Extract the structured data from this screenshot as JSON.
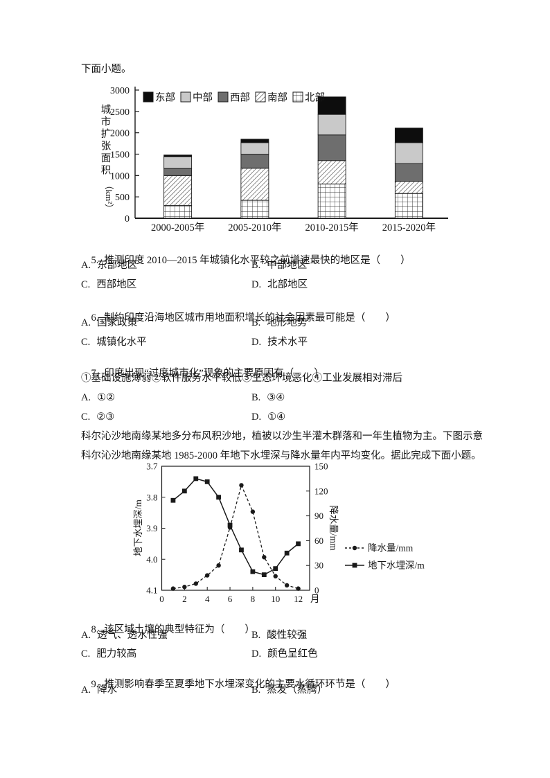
{
  "intro_tail": "下面小题。",
  "passage": {
    "lines": [
      "科尔沁沙地南缘某地多分布风积沙地，植被以沙生半灌木群落和一年生植物为主。下图示意",
      "科尔沁沙地南缘某地 1985-2000 年地下水埋深与降水量年内平均变化。据此完成下面小题。"
    ]
  },
  "chart_data": [
    {
      "type": "bar",
      "stacked": true,
      "ylabel_main": "城市扩张面积",
      "ylabel_unit": "（km²）",
      "categories": [
        "2000-2005年",
        "2005-2010年",
        "2010-2015年",
        "2015-2020年"
      ],
      "series": [
        {
          "name": "北部",
          "pattern": "grid",
          "values": [
            300,
            420,
            800,
            580
          ]
        },
        {
          "name": "南部",
          "pattern": "diagonal",
          "values": [
            700,
            750,
            550,
            280
          ]
        },
        {
          "name": "西部",
          "color": "#6e6e6e",
          "values": [
            165,
            330,
            600,
            420
          ]
        },
        {
          "name": "中部",
          "color": "#c9c9c9",
          "values": [
            275,
            270,
            480,
            490
          ]
        },
        {
          "name": "东部",
          "color": "#0d0d0d",
          "values": [
            40,
            80,
            410,
            340
          ]
        }
      ],
      "legend_order": [
        "东部",
        "中部",
        "西部",
        "南部",
        "北部"
      ],
      "ylim": [
        0,
        3000
      ],
      "yticks": [
        0,
        500,
        1000,
        1500,
        2000,
        2500,
        3000
      ],
      "ink_color": "#1a1a1a"
    },
    {
      "type": "line",
      "months": [
        1,
        2,
        3,
        4,
        5,
        6,
        7,
        8,
        9,
        10,
        11,
        12
      ],
      "xticks": [
        0,
        2,
        4,
        6,
        8,
        10,
        12
      ],
      "x_unit": "月",
      "xlim": [
        0,
        13
      ],
      "left_axis": {
        "label": "地下水埋深/m",
        "range": [
          3.7,
          4.1
        ],
        "ticks": [
          "3.7",
          "3.8",
          "3.9",
          "4.0",
          "4.1"
        ],
        "inverted": true
      },
      "right_axis": {
        "label": "降水量/mm",
        "range": [
          0,
          150
        ],
        "ticks": [
          0,
          30,
          60,
          90,
          120,
          150
        ]
      },
      "series": [
        {
          "name": "降水量/mm",
          "axis": "right",
          "line": "dashed",
          "marker": "circle",
          "values": [
            2,
            4,
            8,
            18,
            30,
            76,
            127,
            95,
            40,
            17,
            6,
            2
          ]
        },
        {
          "name": "地下水埋深/m",
          "axis": "left",
          "line": "solid",
          "marker": "square",
          "values": [
            3.81,
            3.78,
            3.74,
            3.75,
            3.8,
            3.89,
            3.97,
            4.04,
            4.05,
            4.03,
            3.98,
            3.95
          ]
        }
      ],
      "legend_position": "right",
      "ink_color": "#1a1a1a"
    }
  ],
  "questions": [
    {
      "number": "5.",
      "text": "推测印度 2010—2015 年城镇化水平较之前增速最快的地区是（　　）",
      "options": [
        {
          "label": "A.",
          "text": "东部地区"
        },
        {
          "label": "B.",
          "text": "中部地区"
        },
        {
          "label": "C.",
          "text": "西部地区"
        },
        {
          "label": "D.",
          "text": "北部地区"
        }
      ]
    },
    {
      "number": "6.",
      "text": "制约印度沿海地区城市用地面积增长的社会因素最可能是（　　）",
      "options": [
        {
          "label": "A.",
          "text": "国家政策"
        },
        {
          "label": "B.",
          "text": "地形地势"
        },
        {
          "label": "C.",
          "text": "城镇化水平"
        },
        {
          "label": "D.",
          "text": "技术水平"
        }
      ]
    },
    {
      "number": "7.",
      "text": "印度出现“过度城市化”现象的主要原因有（　　）",
      "sub": "①基础设施薄弱②软件服务水平较低③生态环境恶化④工业发展相对滞后",
      "options": [
        {
          "label": "A.",
          "text": "①②"
        },
        {
          "label": "B.",
          "text": "③④"
        },
        {
          "label": "C.",
          "text": "②③"
        },
        {
          "label": "D.",
          "text": "①④"
        }
      ]
    },
    {
      "number": "8.",
      "text": "该区域土壤的典型特征为（　　）",
      "options": [
        {
          "label": "A.",
          "text": "透气、透水性强"
        },
        {
          "label": "B.",
          "text": "酸性较强"
        },
        {
          "label": "C.",
          "text": "肥力较高"
        },
        {
          "label": "D.",
          "text": "颜色呈红色"
        }
      ]
    },
    {
      "number": "9.",
      "text": "推测影响春季至夏季地下水埋深变化的主要水循环环节是（　　）",
      "options": [
        {
          "label": "A.",
          "text": "降水"
        },
        {
          "label": "B.",
          "text": "蒸发（蒸腾）"
        }
      ]
    }
  ]
}
